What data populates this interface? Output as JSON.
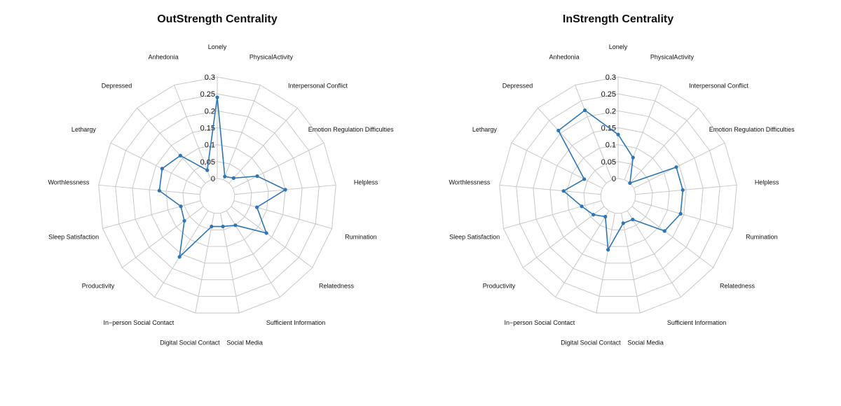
{
  "chart_data": [
    {
      "type": "radar",
      "title": "OutStrength Centrality",
      "categories": [
        "Lonely",
        "PhysicalActivity",
        "Interpersonal Conflict",
        "Emotion Regulation Difficulties",
        "Helpless",
        "Rumination",
        "Relatedness",
        "Sufficient Information",
        "Social Media",
        "Digital Social Contact",
        "In−person Social Contact",
        "Productivity",
        "Sleep Satisfaction",
        "Worthlessness",
        "Lethargy",
        "Depressed",
        "Anhedonia"
      ],
      "values": [
        0.24,
        0.01,
        0.02,
        0.08,
        0.15,
        0.07,
        0.13,
        0.05,
        0.04,
        0.04,
        0.16,
        0.07,
        0.06,
        0.12,
        0.13,
        0.11,
        0.03
      ],
      "rlim": [
        0,
        0.3
      ],
      "rticks": [
        "0",
        "0.05",
        "0.1",
        "0.15",
        "0.2",
        "0.25",
        "0.3"
      ],
      "series_color": "#2e75b6",
      "grid_color": "#c8c8c8"
    },
    {
      "type": "radar",
      "title": "InStrength Centrality",
      "categories": [
        "Lonely",
        "PhysicalActivity",
        "Interpersonal Conflict",
        "Emotion Regulation Difficulties",
        "Helpless",
        "Rumination",
        "Relatedness",
        "Sufficient Information",
        "Social Media",
        "Digital Social Contact",
        "In−person Social Contact",
        "Productivity",
        "Sleep Satisfaction",
        "Worthlessness",
        "Lethargy",
        "Depressed",
        "Anhedonia"
      ],
      "values": [
        0.13,
        0.07,
        0.0,
        0.14,
        0.14,
        0.14,
        0.12,
        0.03,
        0.03,
        0.11,
        0.02,
        0.04,
        0.06,
        0.11,
        0.06,
        0.21,
        0.22
      ],
      "rlim": [
        0,
        0.3
      ],
      "rticks": [
        "0",
        "0.05",
        "0.1",
        "0.15",
        "0.2",
        "0.25",
        "0.3"
      ],
      "series_color": "#2e75b6",
      "grid_color": "#c8c8c8"
    }
  ]
}
